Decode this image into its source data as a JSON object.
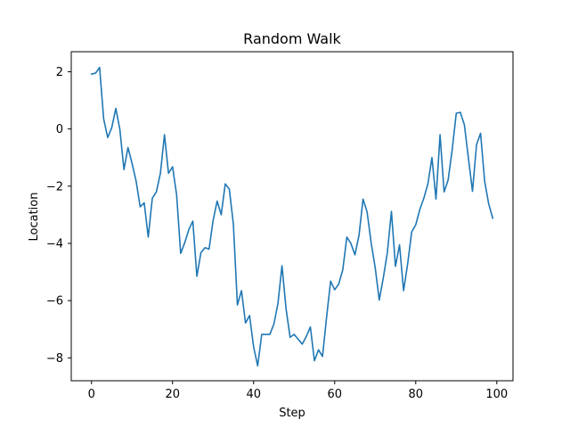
{
  "chart_data": {
    "type": "line",
    "title": "Random Walk",
    "xlabel": "Step",
    "ylabel": "Location",
    "xlim": [
      -5,
      104
    ],
    "ylim": [
      -8.8,
      2.7
    ],
    "xticks": [
      0,
      20,
      40,
      60,
      80,
      100
    ],
    "yticks": [
      2,
      0,
      -2,
      -4,
      -6,
      -8
    ],
    "xtick_labels": [
      "0",
      "20",
      "40",
      "60",
      "80",
      "100"
    ],
    "ytick_labels": [
      "2",
      "0",
      "−2",
      "−4",
      "−6",
      "−8"
    ],
    "grid": false,
    "legend": null,
    "series": [
      {
        "color": "#1f77b4",
        "x": [
          0,
          1,
          2,
          3,
          4,
          5,
          6,
          7,
          8,
          9,
          10,
          11,
          12,
          13,
          14,
          15,
          16,
          17,
          18,
          19,
          20,
          21,
          22,
          23,
          24,
          25,
          26,
          27,
          28,
          29,
          30,
          31,
          32,
          33,
          34,
          35,
          36,
          37,
          38,
          39,
          40,
          41,
          42,
          43,
          44,
          45,
          46,
          47,
          48,
          49,
          50,
          51,
          52,
          53,
          54,
          55,
          56,
          57,
          58,
          59,
          60,
          61,
          62,
          63,
          64,
          65,
          66,
          67,
          68,
          69,
          70,
          71,
          72,
          73,
          74,
          75,
          76,
          77,
          78,
          79,
          80,
          81,
          82,
          83,
          84,
          85,
          86,
          87,
          88,
          89,
          90,
          91,
          92,
          93,
          94,
          95,
          96,
          97,
          98,
          99
        ],
        "values": [
          1.92,
          1.95,
          2.15,
          0.35,
          -0.3,
          0.05,
          0.72,
          -0.02,
          -1.42,
          -0.65,
          -1.2,
          -1.82,
          -2.72,
          -2.58,
          -3.78,
          -2.42,
          -2.2,
          -1.55,
          -0.2,
          -1.55,
          -1.32,
          -2.3,
          -4.35,
          -3.98,
          -3.52,
          -3.22,
          -5.15,
          -4.32,
          -4.15,
          -4.2,
          -3.2,
          -2.52,
          -3.0,
          -1.92,
          -2.1,
          -3.32,
          -6.15,
          -5.65,
          -6.78,
          -6.52,
          -7.62,
          -8.28,
          -7.18,
          -7.18,
          -7.18,
          -6.82,
          -6.1,
          -4.78,
          -6.28,
          -7.28,
          -7.18,
          -7.35,
          -7.52,
          -7.25,
          -6.92,
          -8.1,
          -7.72,
          -7.95,
          -6.58,
          -5.32,
          -5.62,
          -5.42,
          -4.92,
          -3.78,
          -4.0,
          -4.4,
          -3.72,
          -2.45,
          -2.9,
          -3.98,
          -4.85,
          -5.98,
          -5.2,
          -4.32,
          -2.88,
          -4.8,
          -4.05,
          -5.65,
          -4.72,
          -3.6,
          -3.35,
          -2.82,
          -2.42,
          -1.92,
          -1.0,
          -2.45,
          -0.2,
          -2.2,
          -1.78,
          -0.72,
          0.55,
          0.58,
          0.15,
          -1.02,
          -2.18,
          -0.55,
          -0.15,
          -1.82,
          -2.62,
          -3.12
        ]
      }
    ]
  }
}
